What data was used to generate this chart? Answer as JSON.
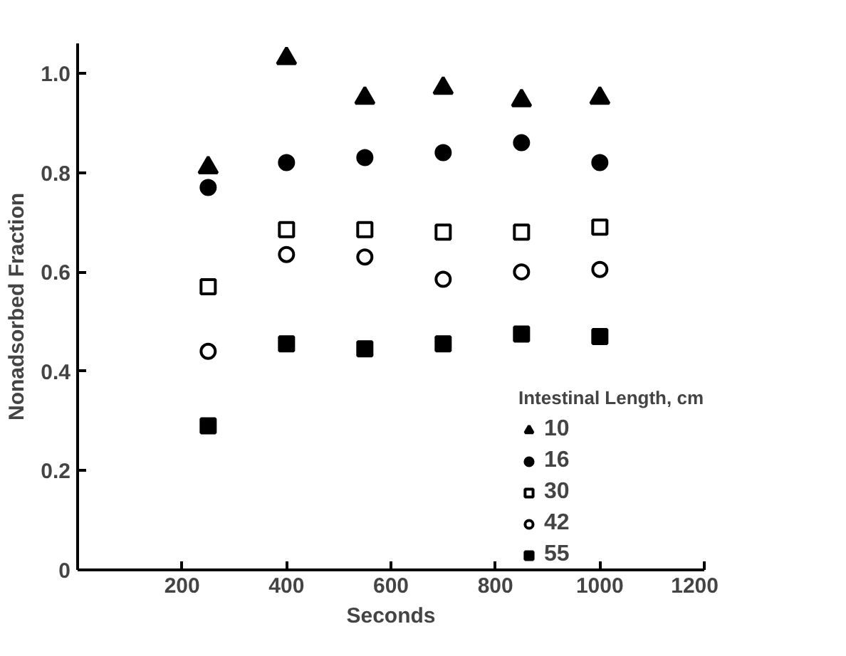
{
  "chart_data": {
    "type": "scatter",
    "xlabel": "Seconds",
    "ylabel": "Nonadsorbed Fraction",
    "legend_title": "Intestinal Length, cm",
    "x": [
      250,
      400,
      550,
      700,
      850,
      1000
    ],
    "series": [
      {
        "name": "10",
        "color": "#000000",
        "marker": "triangle",
        "values": [
          0.81,
          1.03,
          0.95,
          0.97,
          0.945,
          0.95
        ]
      },
      {
        "name": "16",
        "color": "#000000",
        "marker": "circle",
        "values": [
          0.77,
          0.82,
          0.83,
          0.84,
          0.86,
          0.82
        ]
      },
      {
        "name": "30",
        "color": "#ffffff",
        "marker": "square",
        "values": [
          0.57,
          0.685,
          0.685,
          0.68,
          0.68,
          0.69
        ]
      },
      {
        "name": "42",
        "color": "#ffffff",
        "marker": "circle",
        "values": [
          0.44,
          0.635,
          0.63,
          0.585,
          0.6,
          0.605
        ]
      },
      {
        "name": "55",
        "color": "#000000",
        "marker": "square",
        "values": [
          0.29,
          0.455,
          0.445,
          0.455,
          0.475,
          0.47
        ]
      }
    ],
    "xlim": [
      0,
      1200
    ],
    "xticks": [
      200,
      400,
      600,
      800,
      1000,
      1200
    ],
    "ylim": [
      0,
      1.06
    ],
    "yticks": [
      0,
      0.2,
      0.4,
      0.6,
      0.8,
      {
        "value": 1.0,
        "label": "1.0"
      }
    ],
    "legend": "bottom right"
  }
}
